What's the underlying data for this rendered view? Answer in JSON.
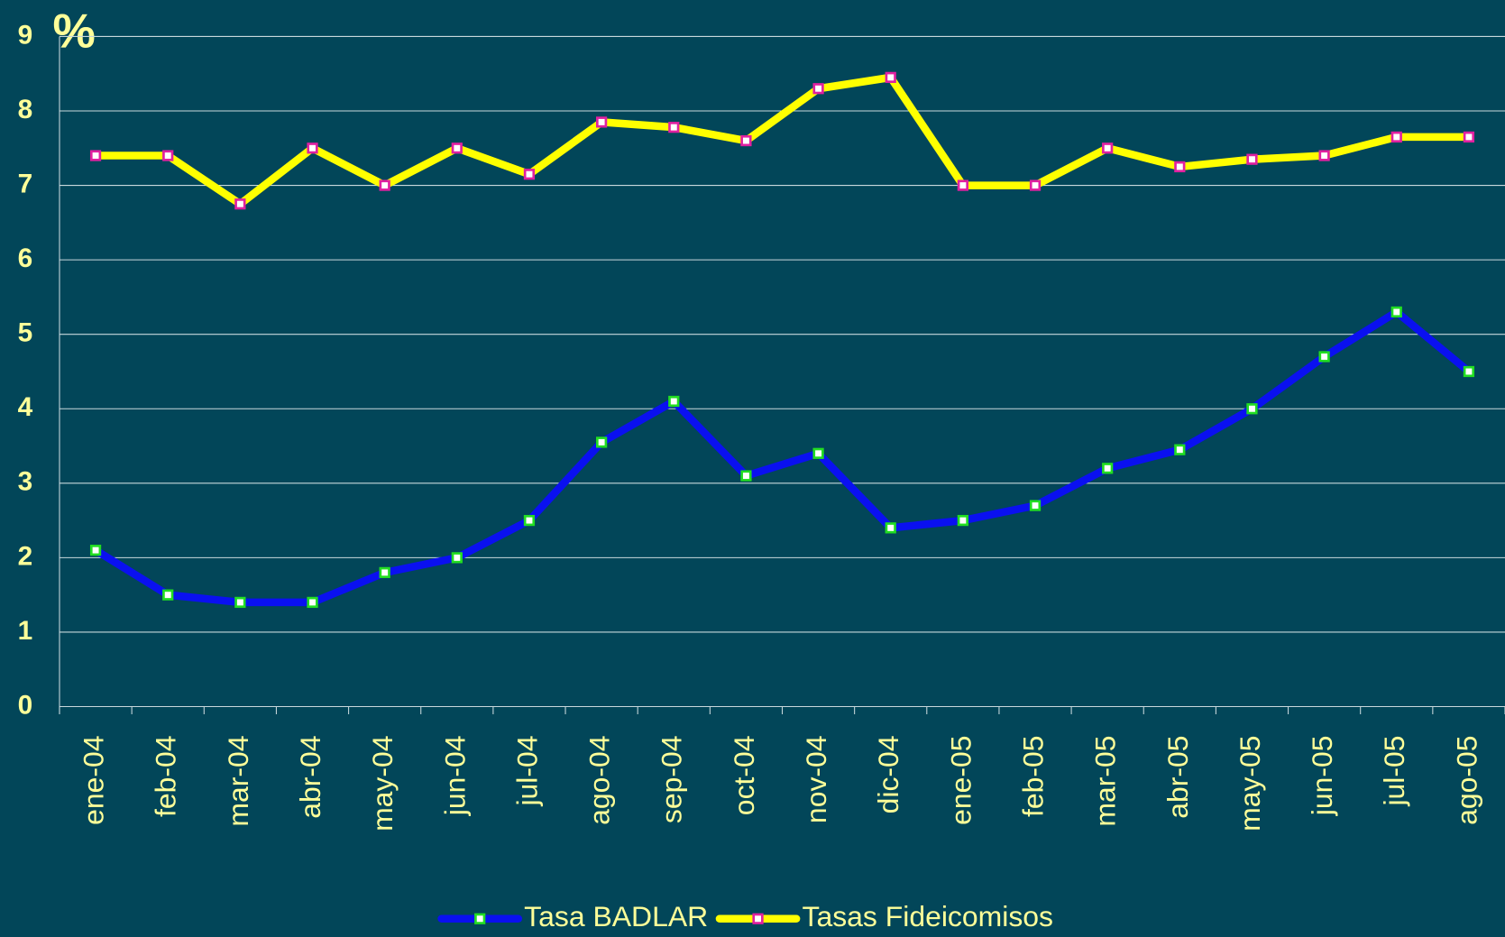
{
  "chart_data": {
    "type": "line",
    "ylabel": "%",
    "categories": [
      "ene-04",
      "feb-04",
      "mar-04",
      "abr-04",
      "may-04",
      "jun-04",
      "jul-04",
      "ago-04",
      "sep-04",
      "oct-04",
      "nov-04",
      "dic-04",
      "ene-05",
      "feb-05",
      "mar-05",
      "abr-05",
      "may-05",
      "jun-05",
      "jul-05",
      "ago-05"
    ],
    "series": [
      {
        "name": "Tasa BADLAR",
        "color": "#0a10f0",
        "marker_color": "#22dd22",
        "values": [
          2.1,
          1.5,
          1.4,
          1.4,
          1.8,
          2.0,
          2.5,
          3.55,
          4.1,
          3.1,
          3.4,
          2.4,
          2.5,
          2.7,
          3.2,
          3.45,
          4.0,
          4.7,
          5.3,
          4.5
        ]
      },
      {
        "name": "Tasas Fideicomisos",
        "color": "#ffff00",
        "marker_color": "#e020a0",
        "values": [
          7.4,
          7.4,
          6.75,
          7.5,
          7.0,
          7.5,
          7.15,
          7.85,
          7.78,
          7.6,
          8.3,
          8.45,
          7.0,
          7.0,
          7.5,
          7.25,
          7.35,
          7.4,
          7.65,
          7.65
        ]
      }
    ],
    "ylim": [
      0,
      9
    ],
    "yticks": [
      0,
      1,
      2,
      3,
      4,
      5,
      6,
      7,
      8,
      9
    ],
    "grid": true,
    "legend": "bottom"
  }
}
